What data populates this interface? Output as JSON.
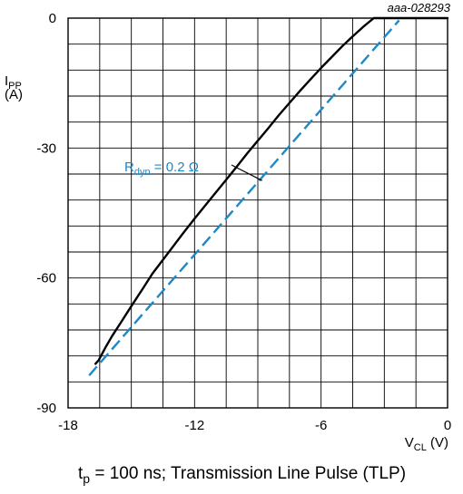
{
  "chart_data": {
    "type": "line",
    "figure_id": "aaa-028293",
    "xlabel": {
      "main": "V",
      "sub": "CL",
      "unit": " (V)"
    },
    "ylabel": {
      "main": "I",
      "sub": "PP",
      "unit": "(A)"
    },
    "xlim": [
      -18,
      0
    ],
    "ylim": [
      -90,
      0
    ],
    "x_ticks": [
      -18,
      -12,
      -6,
      0
    ],
    "x_tick_labels": [
      "-18",
      "-12",
      "-6",
      "0"
    ],
    "y_ticks": [
      0,
      -30,
      -60,
      -90
    ],
    "y_tick_labels": [
      "0",
      "-30",
      "-60",
      "-90"
    ],
    "grid": true,
    "grid_x_step": 1.5,
    "grid_y_step": 6,
    "series": [
      {
        "style": "solid",
        "color": "#000000",
        "x": [
          -16.7,
          -16.55,
          -16.4,
          -16.2,
          -15.9,
          -15.5,
          -15.0,
          -14.5,
          -14.0,
          -13.5,
          -13.0,
          -12.5,
          -12.0,
          -11.5,
          -11.0,
          -10.5,
          -10.0,
          -9.5,
          -9.0,
          -8.5,
          -8.0,
          -7.5,
          -7.0,
          -6.5,
          -6.0,
          -5.5,
          -5.0,
          -4.5,
          -4.0,
          -3.5,
          -3.0,
          -2.5,
          -2.0,
          -1.5,
          -1.2,
          -0.9,
          -0.6,
          -0.3,
          0.0
        ],
        "y": [
          -79.8,
          -79.0,
          -77.6,
          -75.8,
          -73.3,
          -70.3,
          -66.5,
          -62.8,
          -59.0,
          -55.8,
          -52.6,
          -49.4,
          -46.3,
          -43.3,
          -40.3,
          -37.3,
          -34.3,
          -31.2,
          -28.3,
          -25.4,
          -22.4,
          -19.6,
          -16.8,
          -14.1,
          -11.5,
          -9.0,
          -6.5,
          -4.2,
          -2.0,
          0.0,
          0.0,
          0.0,
          0.0,
          0.0,
          0.0,
          0.0,
          0.0,
          0.0,
          0.0
        ]
      },
      {
        "style": "dashed",
        "color": "#1e88c8",
        "x": [
          -17.0,
          -2.3
        ],
        "y": [
          -82.5,
          -0.5
        ]
      }
    ],
    "annotation": {
      "main": "R",
      "sub": "dyn",
      "rest": " = 0.2 Ω",
      "color": "#1e88c8",
      "points_to": [
        -8.8,
        -37.5
      ]
    }
  },
  "caption": {
    "t": "t",
    "sub": "p",
    "rest": " = 100 ns; Transmission Line Pulse (TLP)"
  }
}
